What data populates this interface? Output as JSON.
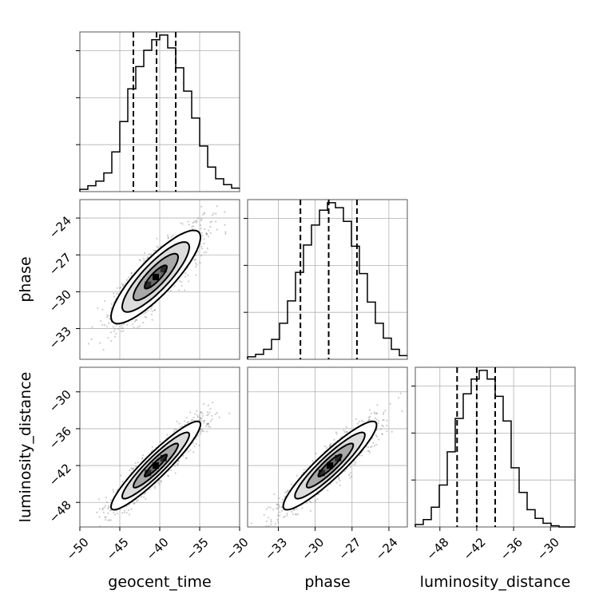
{
  "chart_data": {
    "type": "corner",
    "parameters": [
      "geocent_time",
      "phase",
      "luminosity_distance"
    ],
    "axis_labels": {
      "geocent_time": "geocent_time",
      "phase": "phase",
      "luminosity_distance": "luminosity_distance"
    },
    "ranges": {
      "geocent_time": [
        -50,
        -30
      ],
      "phase": [
        -35.5,
        -22.5
      ],
      "luminosity_distance": [
        -52,
        -26
      ]
    },
    "ticks": {
      "geocent_time": [
        -50,
        -45,
        -40,
        -35,
        -30
      ],
      "phase": [
        -33,
        -30,
        -27,
        -24
      ],
      "luminosity_distance": [
        -48,
        -42,
        -36,
        -30
      ]
    },
    "tick_labels": {
      "geocent_time": [
        "−50",
        "−45",
        "−40",
        "−35",
        "−30"
      ],
      "phase": [
        "−33",
        "−30",
        "−27",
        "−24"
      ],
      "luminosity_distance": [
        "−48",
        "−42",
        "−36",
        "−30"
      ]
    },
    "histograms": {
      "geocent_time": {
        "edges_start": -50,
        "bin_width": 1,
        "counts": [
          0.2,
          0.5,
          0.9,
          1.6,
          3.4,
          6.0,
          8.8,
          10.7,
          12.1,
          13.0,
          13.4,
          12.3,
          10.6,
          8.6,
          6.3,
          3.9,
          2.1,
          1.1,
          0.6,
          0.3
        ],
        "quantiles": [
          -43.3,
          -40.4,
          -38.0
        ]
      },
      "phase": {
        "edges_start": -35.5,
        "bin_width": 0.65,
        "counts": [
          0.2,
          0.4,
          0.8,
          1.6,
          2.9,
          4.7,
          7.0,
          9.2,
          10.8,
          12.0,
          12.6,
          12.2,
          11.1,
          9.1,
          6.9,
          4.6,
          2.9,
          1.7,
          0.8,
          0.3
        ],
        "quantiles": [
          -31.2,
          -28.9,
          -26.6
        ]
      },
      "luminosity_distance": {
        "edges_start": -52,
        "bin_width": 1.3,
        "counts": [
          0.2,
          0.6,
          1.6,
          3.4,
          6.1,
          8.8,
          10.8,
          12.0,
          12.7,
          12.0,
          10.6,
          8.6,
          4.8,
          2.8,
          1.4,
          0.7,
          0.3,
          0.1,
          0.0,
          0.0
        ],
        "quantiles": [
          -45.2,
          -42.0,
          -39.0
        ]
      }
    },
    "joint": [
      {
        "x": "geocent_time",
        "y": "phase",
        "mean": [
          -40.5,
          -28.8
        ],
        "sd": [
          2.8,
          1.9
        ],
        "rho": 0.85
      },
      {
        "x": "geocent_time",
        "y": "luminosity_distance",
        "mean": [
          -40.5,
          -42.0
        ],
        "sd": [
          2.8,
          3.6
        ],
        "rho": 0.93
      },
      {
        "x": "phase",
        "y": "luminosity_distance",
        "mean": [
          -28.8,
          -42.0
        ],
        "sd": [
          1.9,
          3.6
        ],
        "rho": 0.92
      }
    ],
    "contour_levels_sigma": [
      0.5,
      1.0,
      1.5,
      2.0
    ],
    "grid": true
  }
}
